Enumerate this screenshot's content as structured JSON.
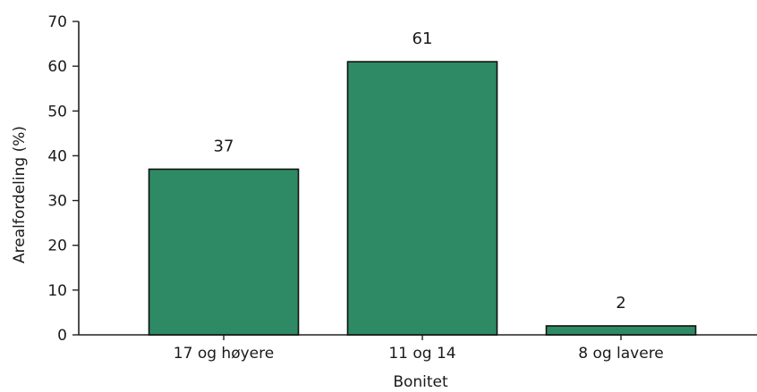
{
  "chart_data": {
    "type": "bar",
    "categories": [
      "17 og høyere",
      "11 og 14",
      "8 og lavere"
    ],
    "values": [
      37,
      61,
      2
    ],
    "data_labels": [
      "37",
      "61",
      "2"
    ],
    "xlabel": "Bonitet",
    "ylabel": "Arealfordeling (%)",
    "ylim": [
      0,
      70
    ],
    "yticks": [
      0,
      10,
      20,
      30,
      40,
      50,
      60,
      70
    ],
    "ytick_labels": [
      "0",
      "10",
      "20",
      "30",
      "40",
      "50",
      "60",
      "70"
    ],
    "bar_color": "#2e8a64",
    "grid": false,
    "legend": "none"
  }
}
